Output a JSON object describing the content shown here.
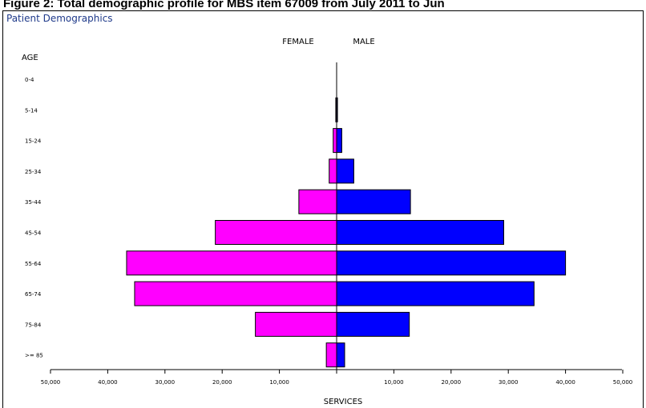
{
  "figure_title": "Figure 2: Total demographic profile for MBS item 67009 from July 2011 to Jun",
  "panel_title": "Patient Demographics",
  "chart_data": {
    "type": "bar",
    "orientation": "horizontal-population-pyramid",
    "title": "Patient Demographics",
    "categories_label": "AGE",
    "categories": [
      "0-4",
      "5-14",
      "15-24",
      "25-34",
      "35-44",
      "45-54",
      "55-64",
      "65-74",
      "75-84",
      ">=85"
    ],
    "category_tick_labels": [
      "0-4",
      "5-14",
      "15-24",
      "25-34",
      "35-44",
      "45-54",
      "55-64",
      "65-74",
      "75-84",
      ">= 85"
    ],
    "series": [
      {
        "name": "FEMALE",
        "color": "#ff00ff",
        "side": "left",
        "values": [
          0,
          150,
          600,
          1300,
          6600,
          21200,
          36700,
          35300,
          14200,
          1800
        ]
      },
      {
        "name": "MALE",
        "color": "#0000ff",
        "side": "right",
        "values": [
          0,
          150,
          900,
          3000,
          12900,
          29200,
          40000,
          34500,
          12700,
          1400
        ]
      }
    ],
    "xlabel": "SERVICES",
    "xlim": [
      -50000,
      50000
    ],
    "x_ticks": [
      -50000,
      -40000,
      -30000,
      -20000,
      -10000,
      0,
      10000,
      20000,
      30000,
      40000,
      50000
    ],
    "x_tick_labels": [
      "50,000",
      "40,000",
      "30,000",
      "20,000",
      "10,000",
      "0",
      "10,000",
      "20,000",
      "30,000",
      "40,000",
      "50,000"
    ],
    "grid": false,
    "legend": "side labels at top"
  }
}
